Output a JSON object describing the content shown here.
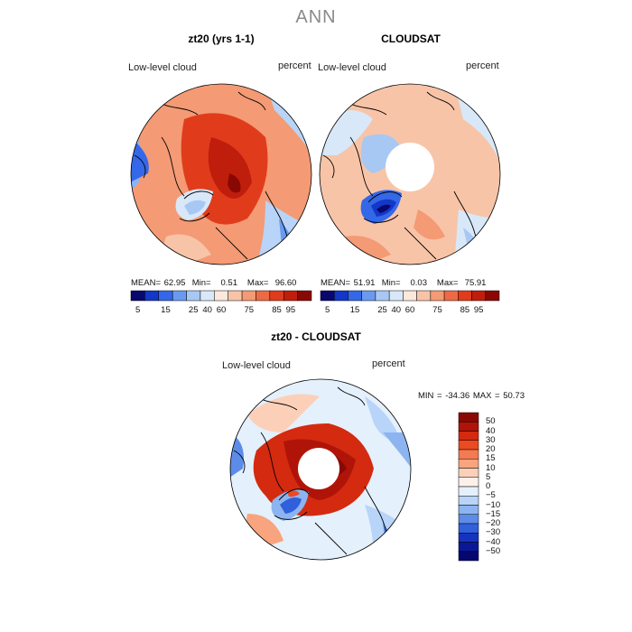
{
  "figure": {
    "suptitle": "ANN"
  },
  "panels": [
    {
      "title": "zt20 (yrs 1-1)",
      "subtitle_left": "Low-level cloud",
      "subtitle_right": "percent",
      "stats": {
        "mean_label": "MEAN=",
        "mean": "62.95",
        "min_label": "Min=",
        "min": "0.51",
        "max_label": "Max=",
        "max": "96.60"
      },
      "has_pole_hole": false
    },
    {
      "title": "CLOUDSAT",
      "subtitle_left": "Low-level cloud",
      "subtitle_right": "percent",
      "stats": {
        "mean_label": "MEAN=",
        "mean": "51.91",
        "min_label": "Min=",
        "min": "0.03",
        "max_label": "Max=",
        "max": "75.91"
      },
      "has_pole_hole": true
    },
    {
      "title": "zt20 - CLOUDSAT",
      "subtitle_left": "Low-level cloud",
      "subtitle_right": "percent",
      "stats_text": "MIN = -34.36 MAX =  50.73",
      "has_pole_hole": true
    }
  ],
  "colorbar_abs": {
    "labels": [
      "5",
      "15",
      "25",
      "40",
      "60",
      "75",
      "85",
      "95"
    ],
    "colors": [
      "#08086e",
      "#1437c8",
      "#3468e8",
      "#6a9af0",
      "#a8c8f4",
      "#d8e8f8",
      "#fce8dc",
      "#f8c4a8",
      "#f49a74",
      "#ee6a44",
      "#e03c1c",
      "#c01e0c",
      "#8a0804"
    ]
  },
  "colorbar_diff": {
    "labels": [
      "50",
      "40",
      "30",
      "20",
      "15",
      "10",
      "5",
      "0",
      "−5",
      "−10",
      "−15",
      "−20",
      "−30",
      "−40",
      "−50"
    ],
    "colors": [
      "#8a0804",
      "#b01408",
      "#d42a10",
      "#ec4a22",
      "#f47a50",
      "#f8a47e",
      "#fcd0b8",
      "#fcf0ea",
      "#e4f0fc",
      "#b8d4f8",
      "#8cb4f0",
      "#5c8ce8",
      "#3060dc",
      "#1434c0",
      "#0a1898",
      "#060670"
    ]
  },
  "colors": {
    "outline": "#000000",
    "suptitle": "#8a8a8a"
  }
}
